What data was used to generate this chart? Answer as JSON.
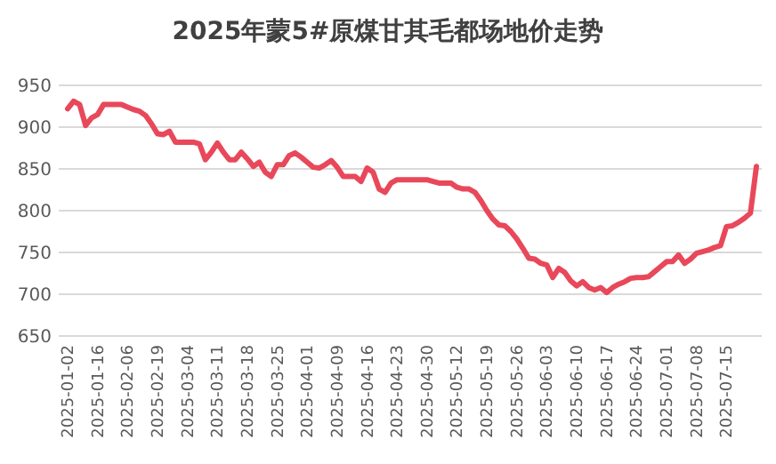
{
  "chart_data": {
    "type": "line",
    "title": "2025年蒙5#原煤甘其毛都场地价走势",
    "categories": [
      "2025-01-02",
      null,
      null,
      null,
      null,
      "2025-01-16",
      null,
      null,
      null,
      null,
      "2025-02-06",
      null,
      null,
      null,
      null,
      "2025-02-19",
      null,
      null,
      null,
      null,
      "2025-03-04",
      null,
      null,
      null,
      null,
      "2025-03-11",
      null,
      null,
      null,
      null,
      "2025-03-18",
      null,
      null,
      null,
      null,
      "2025-03-25",
      null,
      null,
      null,
      null,
      "2025-04-01",
      null,
      null,
      null,
      null,
      "2025-04-09",
      null,
      null,
      null,
      null,
      "2025-04-16",
      null,
      null,
      null,
      null,
      "2025-04-23",
      null,
      null,
      null,
      null,
      "2025-04-30",
      null,
      null,
      null,
      null,
      "2025-05-12",
      null,
      null,
      null,
      null,
      "2025-05-19",
      null,
      null,
      null,
      null,
      "2025-05-26",
      null,
      null,
      null,
      null,
      "2025-06-03",
      null,
      null,
      null,
      null,
      "2025-06-10",
      null,
      null,
      null,
      null,
      "2025-06-17",
      null,
      null,
      null,
      null,
      "2025-06-24",
      null,
      null,
      null,
      null,
      "2025-07-01",
      null,
      null,
      null,
      null,
      "2025-07-08",
      null,
      null,
      null,
      null,
      "2025-07-15",
      null,
      null,
      null,
      null,
      null
    ],
    "series": [
      {
        "color": "#e8485a",
        "values": [
          922,
          931,
          927,
          902,
          911,
          915,
          927,
          927,
          927,
          927,
          924,
          921,
          919,
          914,
          904,
          892,
          891,
          895,
          882,
          882,
          882,
          882,
          880,
          861,
          870,
          881,
          870,
          861,
          861,
          870,
          862,
          853,
          858,
          846,
          841,
          855,
          855,
          866,
          869,
          864,
          858,
          852,
          851,
          855,
          860,
          852,
          841,
          841,
          841,
          835,
          851,
          846,
          826,
          822,
          833,
          837,
          837,
          837,
          837,
          837,
          837,
          835,
          833,
          833,
          833,
          828,
          826,
          826,
          822,
          812,
          800,
          790,
          783,
          782,
          775,
          766,
          755,
          743,
          742,
          737,
          735,
          720,
          731,
          726,
          716,
          710,
          715,
          708,
          705,
          708,
          702,
          708,
          712,
          715,
          719,
          720,
          720,
          721,
          727,
          733,
          739,
          739,
          747,
          737,
          742,
          749,
          751,
          753,
          756,
          758,
          781,
          782,
          786,
          791,
          797,
          853
        ]
      }
    ],
    "ylim": [
      650,
      950
    ],
    "yticks": [
      650,
      700,
      750,
      800,
      850,
      900,
      950
    ],
    "grid": "y",
    "line_style": "solid"
  }
}
